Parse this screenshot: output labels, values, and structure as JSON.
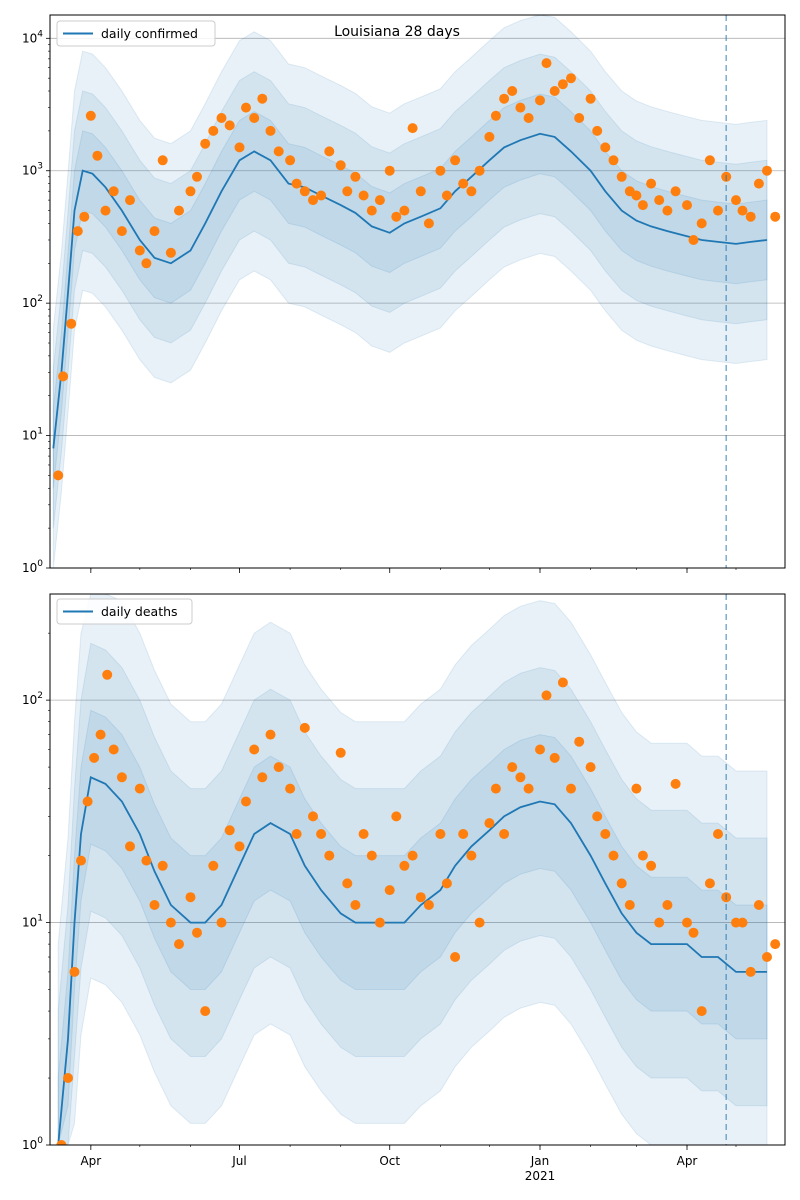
{
  "chart_data": [
    {
      "type": "line",
      "title": "Louisiana 28 days",
      "yscale": "log",
      "ylim": [
        1,
        15000
      ],
      "y_ticks": [
        {
          "value": 1,
          "label": "10^0",
          "base": "10",
          "exp": "0"
        },
        {
          "value": 10,
          "label": "10^1",
          "base": "10",
          "exp": "1"
        },
        {
          "value": 100,
          "label": "10^2",
          "base": "10",
          "exp": "2"
        },
        {
          "value": 1000,
          "label": "10^3",
          "base": "10",
          "exp": "3"
        },
        {
          "value": 10000,
          "label": "10^4",
          "base": "10",
          "exp": "4"
        }
      ],
      "grid": "y-major",
      "legend": {
        "position": "top-left",
        "entries": [
          "daily confirmed"
        ]
      },
      "vline_date": "2021-04-25",
      "series": [
        {
          "name": "daily confirmed",
          "style": "line",
          "x": [
            "2020-03-09",
            "2020-03-14",
            "2020-03-18",
            "2020-03-22",
            "2020-03-27",
            "2020-04-02",
            "2020-04-10",
            "2020-04-20",
            "2020-05-01",
            "2020-05-10",
            "2020-05-20",
            "2020-06-01",
            "2020-06-10",
            "2020-06-20",
            "2020-07-01",
            "2020-07-10",
            "2020-07-20",
            "2020-07-31",
            "2020-08-10",
            "2020-08-20",
            "2020-09-01",
            "2020-09-10",
            "2020-09-20",
            "2020-10-01",
            "2020-10-10",
            "2020-10-20",
            "2020-11-01",
            "2020-11-10",
            "2020-11-20",
            "2020-12-01",
            "2020-12-10",
            "2020-12-20",
            "2021-01-01",
            "2021-01-10",
            "2021-01-20",
            "2021-02-01",
            "2021-02-10",
            "2021-02-20",
            "2021-03-01",
            "2021-03-10",
            "2021-03-20",
            "2021-04-01",
            "2021-04-10",
            "2021-04-20",
            "2021-05-01",
            "2021-05-10",
            "2021-05-20"
          ],
          "y": [
            8,
            30,
            120,
            500,
            1000,
            950,
            750,
            500,
            300,
            220,
            200,
            250,
            400,
            700,
            1200,
            1400,
            1200,
            800,
            750,
            650,
            550,
            480,
            380,
            340,
            400,
            450,
            520,
            700,
            900,
            1200,
            1500,
            1700,
            1900,
            1800,
            1400,
            1000,
            700,
            500,
            420,
            380,
            350,
            320,
            300,
            290,
            280,
            290,
            300
          ]
        },
        {
          "name": "observed",
          "style": "markers",
          "x": [
            "2020-03-12",
            "2020-03-15",
            "2020-03-20",
            "2020-03-24",
            "2020-03-28",
            "2020-04-01",
            "2020-04-05",
            "2020-04-10",
            "2020-04-15",
            "2020-04-20",
            "2020-04-25",
            "2020-05-01",
            "2020-05-05",
            "2020-05-10",
            "2020-05-15",
            "2020-05-20",
            "2020-05-25",
            "2020-06-01",
            "2020-06-05",
            "2020-06-10",
            "2020-06-15",
            "2020-06-20",
            "2020-06-25",
            "2020-07-01",
            "2020-07-05",
            "2020-07-10",
            "2020-07-15",
            "2020-07-20",
            "2020-07-25",
            "2020-08-01",
            "2020-08-05",
            "2020-08-10",
            "2020-08-15",
            "2020-08-20",
            "2020-08-25",
            "2020-09-01",
            "2020-09-05",
            "2020-09-10",
            "2020-09-15",
            "2020-09-20",
            "2020-09-25",
            "2020-10-01",
            "2020-10-05",
            "2020-10-10",
            "2020-10-15",
            "2020-10-20",
            "2020-10-25",
            "2020-11-01",
            "2020-11-05",
            "2020-11-10",
            "2020-11-15",
            "2020-11-20",
            "2020-11-25",
            "2020-12-01",
            "2020-12-05",
            "2020-12-10",
            "2020-12-15",
            "2020-12-20",
            "2020-12-25",
            "2021-01-01",
            "2021-01-05",
            "2021-01-10",
            "2021-01-15",
            "2021-01-20",
            "2021-01-25",
            "2021-02-01",
            "2021-02-05",
            "2021-02-10",
            "2021-02-15",
            "2021-02-20",
            "2021-02-25",
            "2021-03-01",
            "2021-03-05",
            "2021-03-10",
            "2021-03-15",
            "2021-03-20",
            "2021-03-25",
            "2021-04-01",
            "2021-04-05",
            "2021-04-10",
            "2021-04-15",
            "2021-04-20",
            "2021-04-25",
            "2021-05-01",
            "2021-05-05",
            "2021-05-10",
            "2021-05-15",
            "2021-05-20",
            "2021-05-25"
          ],
          "y": [
            5,
            28,
            70,
            350,
            450,
            2600,
            1300,
            500,
            700,
            350,
            600,
            250,
            200,
            350,
            1200,
            240,
            500,
            700,
            900,
            1600,
            2000,
            2500,
            2200,
            1500,
            3000,
            2500,
            3500,
            2000,
            1400,
            1200,
            800,
            700,
            600,
            650,
            1400,
            1100,
            700,
            900,
            650,
            500,
            600,
            1000,
            450,
            500,
            2100,
            700,
            400,
            1000,
            650,
            1200,
            800,
            700,
            1000,
            1800,
            2600,
            3500,
            4000,
            3000,
            2500,
            3400,
            6500,
            4000,
            4500,
            5000,
            2500,
            3500,
            2000,
            1500,
            1200,
            900,
            700,
            650,
            550,
            800,
            600,
            500,
            700,
            550,
            300,
            400,
            1200,
            500,
            900,
            600,
            500,
            450,
            800,
            1000,
            450
          ]
        }
      ]
    },
    {
      "type": "line",
      "title": "",
      "yscale": "log",
      "ylim": [
        1,
        300
      ],
      "y_ticks": [
        {
          "value": 1,
          "label": "10^0",
          "base": "10",
          "exp": "0"
        },
        {
          "value": 10,
          "label": "10^1",
          "base": "10",
          "exp": "1"
        },
        {
          "value": 100,
          "label": "10^2",
          "base": "10",
          "exp": "2"
        }
      ],
      "grid": "y-major",
      "legend": {
        "position": "top-left",
        "entries": [
          "daily deaths"
        ]
      },
      "vline_date": "2021-04-25",
      "x_ticks": [
        {
          "date": "2020-04-01",
          "label": "Apr"
        },
        {
          "date": "2020-07-01",
          "label": "Jul"
        },
        {
          "date": "2020-10-01",
          "label": "Oct"
        },
        {
          "date": "2021-01-01",
          "label": "Jan",
          "sublabel": "2021"
        },
        {
          "date": "2021-04-01",
          "label": "Apr"
        }
      ],
      "series": [
        {
          "name": "daily deaths",
          "style": "line",
          "x": [
            "2020-03-12",
            "2020-03-18",
            "2020-03-22",
            "2020-03-26",
            "2020-04-01",
            "2020-04-10",
            "2020-04-20",
            "2020-05-01",
            "2020-05-10",
            "2020-05-20",
            "2020-06-01",
            "2020-06-10",
            "2020-06-20",
            "2020-07-01",
            "2020-07-10",
            "2020-07-20",
            "2020-08-01",
            "2020-08-10",
            "2020-08-20",
            "2020-09-01",
            "2020-09-10",
            "2020-09-20",
            "2020-10-01",
            "2020-10-10",
            "2020-10-20",
            "2020-11-01",
            "2020-11-10",
            "2020-11-20",
            "2020-12-01",
            "2020-12-10",
            "2020-12-20",
            "2021-01-01",
            "2021-01-10",
            "2021-01-20",
            "2021-02-01",
            "2021-02-10",
            "2021-02-20",
            "2021-03-01",
            "2021-03-10",
            "2021-03-20",
            "2021-04-01",
            "2021-04-10",
            "2021-04-20",
            "2021-05-01",
            "2021-05-10",
            "2021-05-20"
          ],
          "y": [
            1,
            3,
            10,
            25,
            45,
            42,
            35,
            25,
            17,
            12,
            10,
            10,
            12,
            18,
            25,
            28,
            25,
            18,
            14,
            11,
            10,
            10,
            10,
            10,
            12,
            14,
            18,
            22,
            26,
            30,
            33,
            35,
            34,
            28,
            20,
            15,
            11,
            9,
            8,
            8,
            8,
            7,
            7,
            6,
            6,
            6
          ]
        },
        {
          "name": "observed",
          "style": "markers",
          "x": [
            "2020-03-14",
            "2020-03-18",
            "2020-03-22",
            "2020-03-26",
            "2020-03-30",
            "2020-04-03",
            "2020-04-07",
            "2020-04-11",
            "2020-04-15",
            "2020-04-20",
            "2020-04-25",
            "2020-05-01",
            "2020-05-05",
            "2020-05-10",
            "2020-05-15",
            "2020-05-20",
            "2020-05-25",
            "2020-06-01",
            "2020-06-05",
            "2020-06-10",
            "2020-06-15",
            "2020-06-20",
            "2020-06-25",
            "2020-07-01",
            "2020-07-05",
            "2020-07-10",
            "2020-07-15",
            "2020-07-20",
            "2020-07-25",
            "2020-08-01",
            "2020-08-05",
            "2020-08-10",
            "2020-08-15",
            "2020-08-20",
            "2020-08-25",
            "2020-09-01",
            "2020-09-05",
            "2020-09-10",
            "2020-09-15",
            "2020-09-20",
            "2020-09-25",
            "2020-10-01",
            "2020-10-05",
            "2020-10-10",
            "2020-10-15",
            "2020-10-20",
            "2020-10-25",
            "2020-11-01",
            "2020-11-05",
            "2020-11-10",
            "2020-11-15",
            "2020-11-20",
            "2020-11-25",
            "2020-12-01",
            "2020-12-05",
            "2020-12-10",
            "2020-12-15",
            "2020-12-20",
            "2020-12-25",
            "2021-01-01",
            "2021-01-05",
            "2021-01-10",
            "2021-01-15",
            "2021-01-20",
            "2021-01-25",
            "2021-02-01",
            "2021-02-05",
            "2021-02-10",
            "2021-02-15",
            "2021-02-20",
            "2021-02-25",
            "2021-03-01",
            "2021-03-05",
            "2021-03-10",
            "2021-03-15",
            "2021-03-20",
            "2021-03-25",
            "2021-04-01",
            "2021-04-05",
            "2021-04-10",
            "2021-04-15",
            "2021-04-20",
            "2021-04-25",
            "2021-05-01",
            "2021-05-05",
            "2021-05-10",
            "2021-05-15",
            "2021-05-20",
            "2021-05-25"
          ],
          "y": [
            1,
            2,
            6,
            19,
            35,
            55,
            70,
            130,
            60,
            45,
            22,
            40,
            19,
            12,
            18,
            10,
            8,
            13,
            9,
            4,
            18,
            10,
            26,
            22,
            35,
            60,
            45,
            70,
            50,
            40,
            25,
            75,
            30,
            25,
            20,
            58,
            15,
            12,
            25,
            20,
            10,
            14,
            30,
            18,
            20,
            13,
            12,
            25,
            15,
            7,
            25,
            20,
            10,
            28,
            40,
            25,
            50,
            45,
            40,
            60,
            105,
            55,
            120,
            40,
            65,
            50,
            30,
            25,
            20,
            15,
            12,
            40,
            20,
            18,
            10,
            12,
            42,
            10,
            9,
            4,
            15,
            25,
            13,
            10,
            10,
            6,
            12,
            7,
            8
          ]
        }
      ]
    }
  ]
}
